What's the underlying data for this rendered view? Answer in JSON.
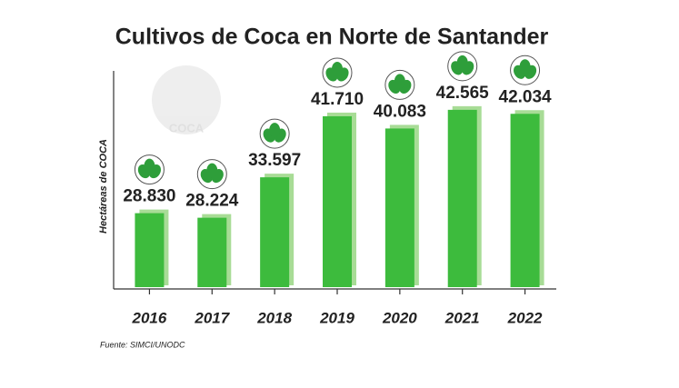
{
  "chart_data": {
    "type": "bar",
    "title": "Cultivos de Coca en Norte de Santander",
    "y_label": "Hectáreas de COCA",
    "source": "Fuente: SIMCI/UNODC",
    "logo_text": "COCA",
    "categories": [
      "2016",
      "2017",
      "2018",
      "2019",
      "2020",
      "2021",
      "2022"
    ],
    "values": [
      28830,
      28224,
      33597,
      41710,
      40083,
      42565,
      42034
    ],
    "value_labels": [
      "28.830",
      "28.224",
      "33.597",
      "41.710",
      "40.083",
      "42.565",
      "42.034"
    ],
    "color": "#3dbb3d",
    "ylim": [
      19000,
      47500
    ]
  }
}
